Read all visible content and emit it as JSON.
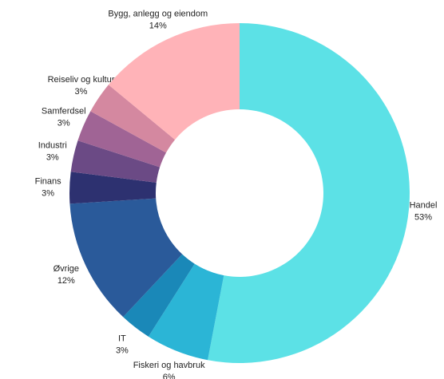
{
  "chart_data": {
    "type": "donut",
    "categories": [
      "Handel",
      "Fiskeri og havbruk",
      "IT",
      "Øvrige",
      "Finans",
      "Industri",
      "Samferdsel",
      "Reiseliv og kultur",
      "Bygg, anlegg og eiendom"
    ],
    "values": [
      53,
      6,
      3,
      12,
      3,
      3,
      3,
      3,
      14
    ],
    "value_labels": [
      "53%",
      "6%",
      "3%",
      "12%",
      "3%",
      "3%",
      "3%",
      "3%",
      "14%"
    ],
    "colors": [
      "#5ce1e6",
      "#2bb5d6",
      "#1a88b8",
      "#2a5a9a",
      "#2d3170",
      "#6b4a85",
      "#a06495",
      "#d488a0",
      "#ffb3b8"
    ]
  }
}
